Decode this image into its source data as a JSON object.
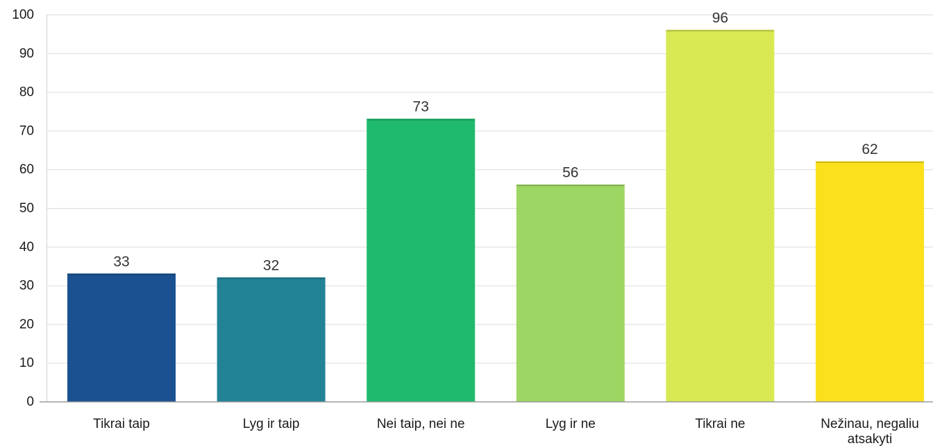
{
  "chart_data": {
    "type": "bar",
    "title": "",
    "xlabel": "",
    "ylabel": "",
    "categories": [
      [
        "Tikrai taip"
      ],
      [
        "Lyg ir taip"
      ],
      [
        "Nei taip, nei ne"
      ],
      [
        "Lyg ir ne"
      ],
      [
        "Tikrai ne"
      ],
      [
        "Nežinau, negaliu",
        "atsakyti"
      ]
    ],
    "values": [
      33,
      32,
      73,
      56,
      96,
      62
    ],
    "colors": [
      "#1a5190",
      "#238396",
      "#1fba6e",
      "#9ed663",
      "#d8e953",
      "#fbe01c"
    ],
    "ylim": [
      0,
      100
    ],
    "yticks": [
      0,
      10,
      20,
      30,
      40,
      50,
      60,
      70,
      80,
      90,
      100
    ],
    "grid": true,
    "legend": "none",
    "data_labels": true
  }
}
